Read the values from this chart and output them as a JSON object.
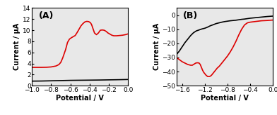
{
  "panel_A": {
    "label": "(A)",
    "xlim": [
      -1.0,
      0.0
    ],
    "ylim": [
      0,
      14
    ],
    "xticks": [
      -1.0,
      -0.8,
      -0.6,
      -0.4,
      -0.2,
      0.0
    ],
    "yticks": [
      0,
      2,
      4,
      6,
      8,
      10,
      12,
      14
    ],
    "xlabel": "Potential / V",
    "ylabel": "Current / μA",
    "black_line": {
      "x": [
        -1.0,
        -0.95,
        -0.9,
        -0.85,
        -0.8,
        -0.75,
        -0.7,
        -0.65,
        -0.6,
        -0.5,
        -0.4,
        -0.3,
        -0.2,
        -0.1,
        0.0
      ],
      "y": [
        0.82,
        0.83,
        0.84,
        0.86,
        0.88,
        0.9,
        0.92,
        0.94,
        0.96,
        0.98,
        1.0,
        1.02,
        1.05,
        1.08,
        1.12
      ]
    },
    "red_line": {
      "x": [
        -1.0,
        -0.95,
        -0.9,
        -0.85,
        -0.8,
        -0.75,
        -0.72,
        -0.7,
        -0.68,
        -0.65,
        -0.63,
        -0.61,
        -0.59,
        -0.57,
        -0.55,
        -0.53,
        -0.51,
        -0.49,
        -0.47,
        -0.45,
        -0.43,
        -0.41,
        -0.4,
        -0.39,
        -0.38,
        -0.37,
        -0.36,
        -0.35,
        -0.33,
        -0.31,
        -0.29,
        -0.27,
        -0.25,
        -0.23,
        -0.21,
        -0.19,
        -0.17,
        -0.15,
        -0.12,
        -0.09,
        -0.06,
        -0.03,
        0.0
      ],
      "y": [
        3.3,
        3.3,
        3.3,
        3.32,
        3.38,
        3.55,
        3.8,
        4.2,
        5.0,
        6.5,
        7.8,
        8.4,
        8.65,
        8.85,
        9.05,
        9.6,
        10.2,
        10.8,
        11.2,
        11.5,
        11.6,
        11.55,
        11.45,
        11.3,
        11.0,
        10.5,
        10.0,
        9.5,
        9.2,
        9.5,
        10.0,
        10.05,
        10.0,
        9.8,
        9.5,
        9.3,
        9.1,
        9.0,
        9.0,
        9.05,
        9.1,
        9.2,
        9.35
      ]
    }
  },
  "panel_B": {
    "label": "(B)",
    "xlim": [
      -1.7,
      0.0
    ],
    "ylim": [
      -50,
      5
    ],
    "xticks": [
      -1.6,
      -1.2,
      -0.8,
      -0.4,
      0.0
    ],
    "yticks": [
      -50,
      -40,
      -30,
      -20,
      -10,
      0
    ],
    "xlabel": "Potential / V",
    "ylabel": "Current / μA",
    "black_line": {
      "x": [
        -1.7,
        -1.65,
        -1.6,
        -1.55,
        -1.5,
        -1.45,
        -1.4,
        -1.35,
        -1.3,
        -1.28,
        -1.25,
        -1.22,
        -1.2,
        -1.15,
        -1.1,
        -1.05,
        -1.0,
        -0.95,
        -0.9,
        -0.85,
        -0.8,
        -0.75,
        -0.7,
        -0.65,
        -0.6,
        -0.55,
        -0.5,
        -0.45,
        -0.4,
        -0.3,
        -0.2,
        -0.1,
        0.0
      ],
      "y": [
        -28.0,
        -25.5,
        -22.5,
        -19.5,
        -17.0,
        -14.5,
        -12.5,
        -11.2,
        -10.5,
        -10.2,
        -9.8,
        -9.5,
        -9.3,
        -8.5,
        -7.5,
        -6.8,
        -6.0,
        -5.5,
        -5.0,
        -4.6,
        -4.3,
        -4.0,
        -3.8,
        -3.6,
        -3.3,
        -3.0,
        -2.8,
        -2.5,
        -2.2,
        -1.8,
        -1.4,
        -1.0,
        -0.7
      ]
    },
    "red_line": {
      "x": [
        -1.7,
        -1.65,
        -1.6,
        -1.55,
        -1.5,
        -1.45,
        -1.42,
        -1.4,
        -1.38,
        -1.36,
        -1.34,
        -1.32,
        -1.3,
        -1.28,
        -1.26,
        -1.24,
        -1.22,
        -1.2,
        -1.18,
        -1.15,
        -1.12,
        -1.1,
        -1.08,
        -1.06,
        -1.04,
        -1.02,
        -1.0,
        -0.98,
        -0.96,
        -0.94,
        -0.92,
        -0.9,
        -0.88,
        -0.86,
        -0.84,
        -0.82,
        -0.8,
        -0.75,
        -0.7,
        -0.65,
        -0.6,
        -0.55,
        -0.5,
        -0.45,
        -0.4,
        -0.3,
        -0.2,
        -0.1,
        0.0
      ],
      "y": [
        -30.0,
        -31.5,
        -33.0,
        -34.0,
        -35.0,
        -35.5,
        -35.5,
        -35.0,
        -34.5,
        -34.0,
        -33.8,
        -33.8,
        -34.0,
        -35.0,
        -37.0,
        -39.0,
        -40.5,
        -41.5,
        -42.5,
        -43.5,
        -43.5,
        -43.2,
        -42.5,
        -41.5,
        -40.5,
        -39.5,
        -38.5,
        -37.5,
        -36.8,
        -36.0,
        -35.0,
        -34.0,
        -33.0,
        -32.0,
        -31.0,
        -30.0,
        -29.0,
        -26.0,
        -22.5,
        -18.5,
        -14.0,
        -10.0,
        -7.0,
        -5.5,
        -5.0,
        -4.5,
        -4.0,
        -3.8,
        -3.5
      ]
    }
  },
  "line_color_black": "#000000",
  "line_color_red": "#dd0000",
  "background_color": "#ffffff",
  "axes_bg_color": "#e8e8e8",
  "label_fontsize": 7,
  "tick_fontsize": 6.5,
  "line_width": 1.2,
  "label_bold": true
}
